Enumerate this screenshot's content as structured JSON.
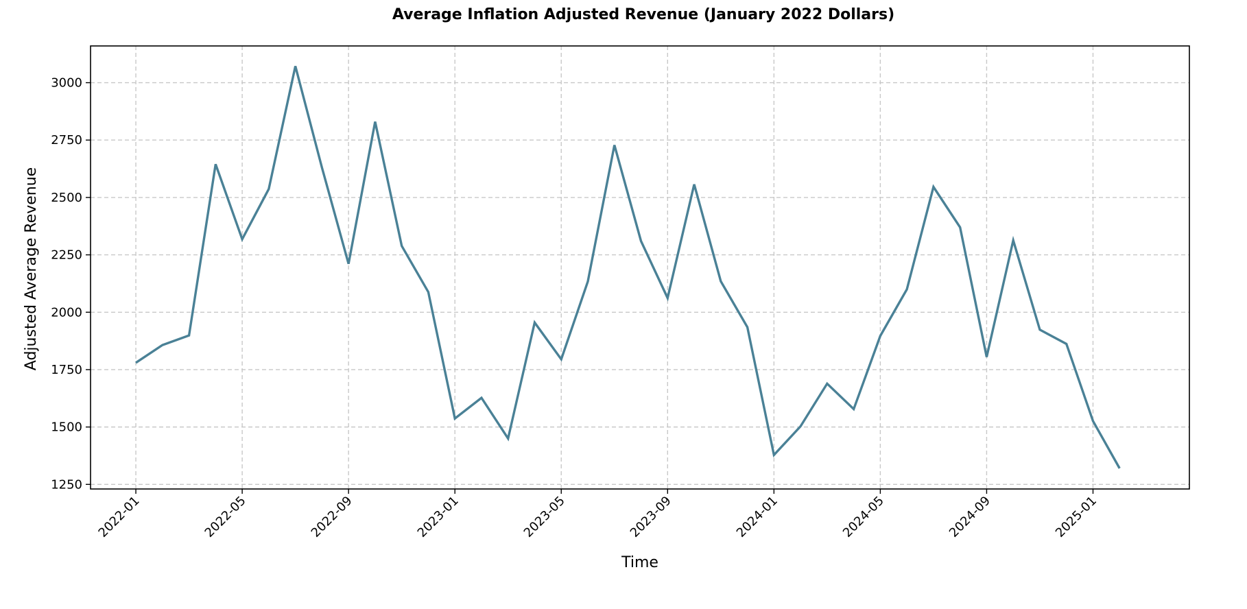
{
  "chart_data": {
    "type": "line",
    "title": "Average Inflation Adjusted Revenue (January 2022 Dollars)",
    "xlabel": "Time",
    "ylabel": "Adjusted Average Revenue",
    "ylim": [
      1230,
      3160
    ],
    "xlim": [
      "2021-11-10",
      "2025-04-20"
    ],
    "grid": true,
    "legend": null,
    "yticks": [
      1250,
      1500,
      1750,
      2000,
      2250,
      2500,
      2750,
      3000
    ],
    "ytick_labels": [
      "1250",
      "1500",
      "1750",
      "2000",
      "2250",
      "2500",
      "2750",
      "3000"
    ],
    "xticks": [
      "2022-01",
      "2022-05",
      "2022-09",
      "2023-01",
      "2023-05",
      "2023-09",
      "2024-01",
      "2024-05",
      "2024-09",
      "2025-01"
    ],
    "x": [
      "2022-01",
      "2022-02",
      "2022-03",
      "2022-04",
      "2022-05",
      "2022-06",
      "2022-07",
      "2022-08",
      "2022-09",
      "2022-10",
      "2022-11",
      "2022-12",
      "2023-01",
      "2023-02",
      "2023-03",
      "2023-04",
      "2023-05",
      "2023-06",
      "2023-07",
      "2023-08",
      "2023-09",
      "2023-10",
      "2023-11",
      "2023-12",
      "2024-01",
      "2024-02",
      "2024-03",
      "2024-04",
      "2024-05",
      "2024-06",
      "2024-07",
      "2024-08",
      "2024-09",
      "2024-10",
      "2024-11",
      "2024-12",
      "2025-01",
      "2025-02"
    ],
    "series": [
      {
        "name": "Adjusted Average Revenue",
        "color": "#4a8196",
        "values": [
          1780,
          1857,
          1899,
          2645,
          2318,
          2537,
          3072,
          2630,
          2211,
          2830,
          2289,
          2088,
          1537,
          1627,
          1450,
          1955,
          1795,
          2134,
          2728,
          2310,
          2062,
          2557,
          2135,
          1935,
          1378,
          1503,
          1689,
          1578,
          1897,
          2100,
          2546,
          2370,
          1805,
          2313,
          1924,
          1862,
          1526,
          1320
        ]
      }
    ]
  }
}
